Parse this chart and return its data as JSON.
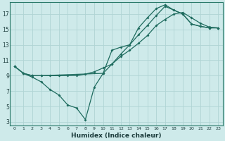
{
  "xlabel": "Humidex (Indice chaleur)",
  "bg_color": "#ceeaea",
  "grid_color": "#b0d4d4",
  "line_color": "#1e6b5e",
  "xlim": [
    -0.5,
    23.5
  ],
  "ylim": [
    2.5,
    18.5
  ],
  "xticks": [
    0,
    1,
    2,
    3,
    4,
    5,
    6,
    7,
    8,
    9,
    10,
    11,
    12,
    13,
    14,
    15,
    16,
    17,
    18,
    19,
    20,
    21,
    22,
    23
  ],
  "yticks": [
    3,
    5,
    7,
    9,
    11,
    13,
    15,
    17
  ],
  "line1_x": [
    0,
    1,
    2,
    3,
    4,
    5,
    6,
    7,
    8,
    9,
    10,
    11,
    12,
    13,
    14,
    15,
    16,
    17,
    18,
    19,
    20,
    21,
    22,
    23
  ],
  "line1_y": [
    10.2,
    9.3,
    9.0,
    9.0,
    9.0,
    9.0,
    9.0,
    9.0,
    9.2,
    9.5,
    10.0,
    10.5,
    11.5,
    12.3,
    13.2,
    14.2,
    15.5,
    16.3,
    17.0,
    17.2,
    16.5,
    15.8,
    15.3,
    15.2
  ],
  "line2_x": [
    0,
    1,
    2,
    3,
    4,
    5,
    6,
    7,
    8,
    9,
    10,
    11,
    12,
    13,
    14,
    15,
    16,
    17,
    18,
    19,
    20,
    21,
    22,
    23
  ],
  "line2_y": [
    10.2,
    9.3,
    8.8,
    8.2,
    7.2,
    6.5,
    5.2,
    4.8,
    3.3,
    7.5,
    9.3,
    12.3,
    12.7,
    13.0,
    15.2,
    16.5,
    17.7,
    18.2,
    17.5,
    17.0,
    15.7,
    15.4,
    15.2,
    15.2
  ],
  "line3_x": [
    0,
    1,
    2,
    3,
    10,
    11,
    12,
    13,
    14,
    15,
    16,
    17,
    18,
    19,
    20,
    21,
    22,
    23
  ],
  "line3_y": [
    10.2,
    9.3,
    9.0,
    9.0,
    9.3,
    10.5,
    11.8,
    13.0,
    14.3,
    15.5,
    16.8,
    18.0,
    17.5,
    17.0,
    15.7,
    15.4,
    15.2,
    15.2
  ]
}
